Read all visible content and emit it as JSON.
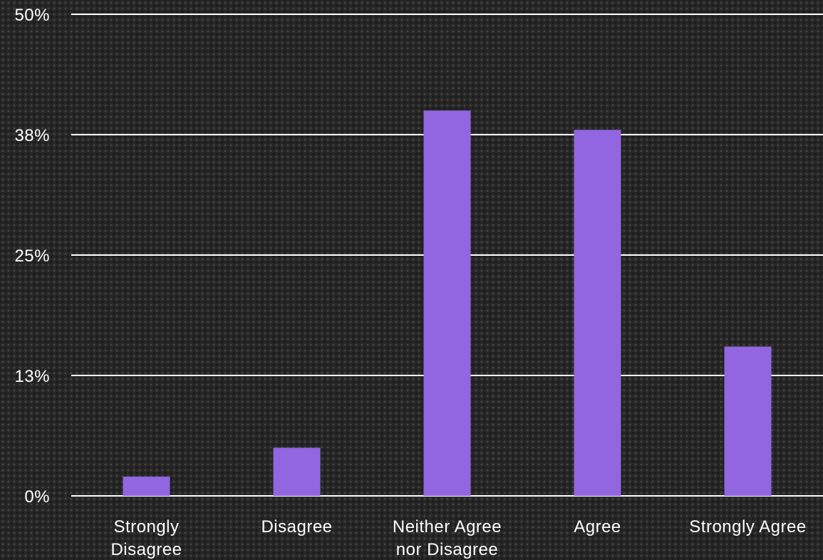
{
  "chart_data": {
    "type": "bar",
    "title": "",
    "xlabel": "",
    "ylabel": "",
    "categories": [
      [
        "Strongly",
        "Disagree"
      ],
      [
        "Disagree"
      ],
      [
        "Neither Agree",
        "nor Disagree"
      ],
      [
        "Agree"
      ],
      [
        "Strongly Agree"
      ]
    ],
    "values": [
      2,
      5,
      40,
      38,
      15.5
    ],
    "ylim": [
      0,
      50
    ],
    "yticks": [
      0,
      12.5,
      25,
      37.5,
      50
    ],
    "ytick_labels": [
      "0%",
      "13%",
      "25%",
      "38%",
      "50%"
    ],
    "grid": true,
    "bar_color": "#9266e0",
    "grid_color": "#ffffff",
    "text_color": "#ffffff"
  }
}
